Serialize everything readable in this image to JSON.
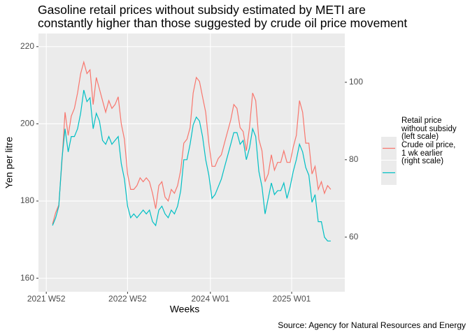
{
  "chart_data": {
    "type": "line",
    "title": "Gasoline retail prices without subsidy estimated by METI are\nconstantly higher than those suggested by crude oil price movement",
    "x_label": "Weeks",
    "y_label": "Yen per litre",
    "caption": "Source: Agency for Natural Resources and Energy",
    "x": [
      "2022 W04",
      "2022 W06",
      "2022 W08",
      "2022 W10",
      "2022 W12",
      "2022 W14",
      "2022 W16",
      "2022 W18",
      "2022 W20",
      "2022 W22",
      "2022 W24",
      "2022 W26",
      "2022 W28",
      "2022 W30",
      "2022 W32",
      "2022 W34",
      "2022 W36",
      "2022 W38",
      "2022 W40",
      "2022 W42",
      "2022 W44",
      "2022 W46",
      "2022 W48",
      "2022 W50",
      "2022 W52",
      "2023 W02",
      "2023 W04",
      "2023 W06",
      "2023 W08",
      "2023 W10",
      "2023 W12",
      "2023 W14",
      "2023 W16",
      "2023 W18",
      "2023 W20",
      "2023 W22",
      "2023 W24",
      "2023 W26",
      "2023 W28",
      "2023 W30",
      "2023 W32",
      "2023 W34",
      "2023 W36",
      "2023 W38",
      "2023 W40",
      "2023 W42",
      "2023 W44",
      "2023 W46",
      "2023 W48",
      "2023 W50",
      "2023 W52",
      "2024 W02",
      "2024 W04",
      "2024 W06",
      "2024 W08",
      "2024 W10",
      "2024 W12",
      "2024 W14",
      "2024 W16",
      "2024 W18",
      "2024 W20",
      "2024 W22",
      "2024 W24",
      "2024 W26",
      "2024 W28",
      "2024 W30",
      "2024 W32",
      "2024 W34",
      "2024 W36",
      "2024 W38",
      "2024 W40",
      "2024 W42",
      "2024 W44",
      "2024 W46",
      "2024 W48",
      "2024 W50",
      "2024 W52",
      "2025 W02",
      "2025 W04",
      "2025 W06",
      "2025 W08",
      "2025 W10",
      "2025 W12",
      "2025 W14",
      "2025 W16",
      "2025 W18",
      "2025 W20",
      "2025 W22",
      "2025 W24",
      "2025 W26"
    ],
    "xlim": [
      "2021 W47",
      "2025 W35"
    ],
    "xticks": [
      "2021 W52",
      "2022 W52",
      "2024 W01",
      "2025 W01"
    ],
    "ylim": [
      156.5,
      223.4
    ],
    "yticks": [
      160,
      180,
      200,
      220
    ],
    "y2lim": [
      45.9,
      112.6
    ],
    "y2ticks": [
      60,
      80,
      100
    ],
    "grid": true,
    "legend": "right",
    "series": [
      {
        "name": "Retail price\nwithout subsidy\n(left scale)",
        "color": "#F8766D",
        "values": [
          174,
          177,
          179,
          190,
          203,
          197,
          202,
          204,
          208,
          213,
          216,
          213,
          214,
          205,
          212,
          209,
          206,
          203,
          206,
          204,
          205,
          207,
          200,
          196,
          187,
          183,
          183,
          184,
          186,
          185,
          186,
          185,
          182,
          178,
          184,
          185,
          181,
          180,
          183,
          182,
          184,
          188,
          195,
          196,
          199,
          208,
          212,
          211,
          207,
          203,
          195,
          189,
          189,
          191,
          192,
          195,
          198,
          201,
          205,
          204,
          199,
          198,
          193,
          199,
          208,
          206,
          196,
          193,
          185,
          187,
          192,
          188,
          190,
          190,
          193,
          190,
          190,
          194,
          197,
          206,
          203,
          195,
          195,
          187,
          189,
          183,
          185,
          182,
          184,
          183
        ]
      },
      {
        "name": "Crude oil price,\n1 wk earlier\n(right scale)",
        "color": "#00BFC4",
        "axis": "y2",
        "values": [
          63,
          65,
          68,
          80,
          88,
          82,
          86,
          86,
          88,
          92,
          98,
          95,
          96,
          88,
          92,
          90,
          85,
          84,
          86,
          84,
          85,
          86,
          79,
          75,
          68,
          65,
          66,
          65,
          66,
          67,
          66,
          67,
          64,
          63,
          67,
          68,
          66,
          65,
          67,
          66,
          68,
          72,
          80,
          80,
          84,
          89,
          91,
          90,
          86,
          80,
          76,
          70,
          71,
          73,
          75,
          78,
          81,
          84,
          87,
          87,
          84,
          85,
          80,
          83,
          88,
          86,
          77,
          73,
          66,
          70,
          74,
          71,
          72,
          72,
          74,
          70,
          73,
          77,
          80,
          84,
          82,
          78,
          76,
          69,
          71,
          64,
          64,
          60,
          59,
          59
        ]
      }
    ]
  }
}
